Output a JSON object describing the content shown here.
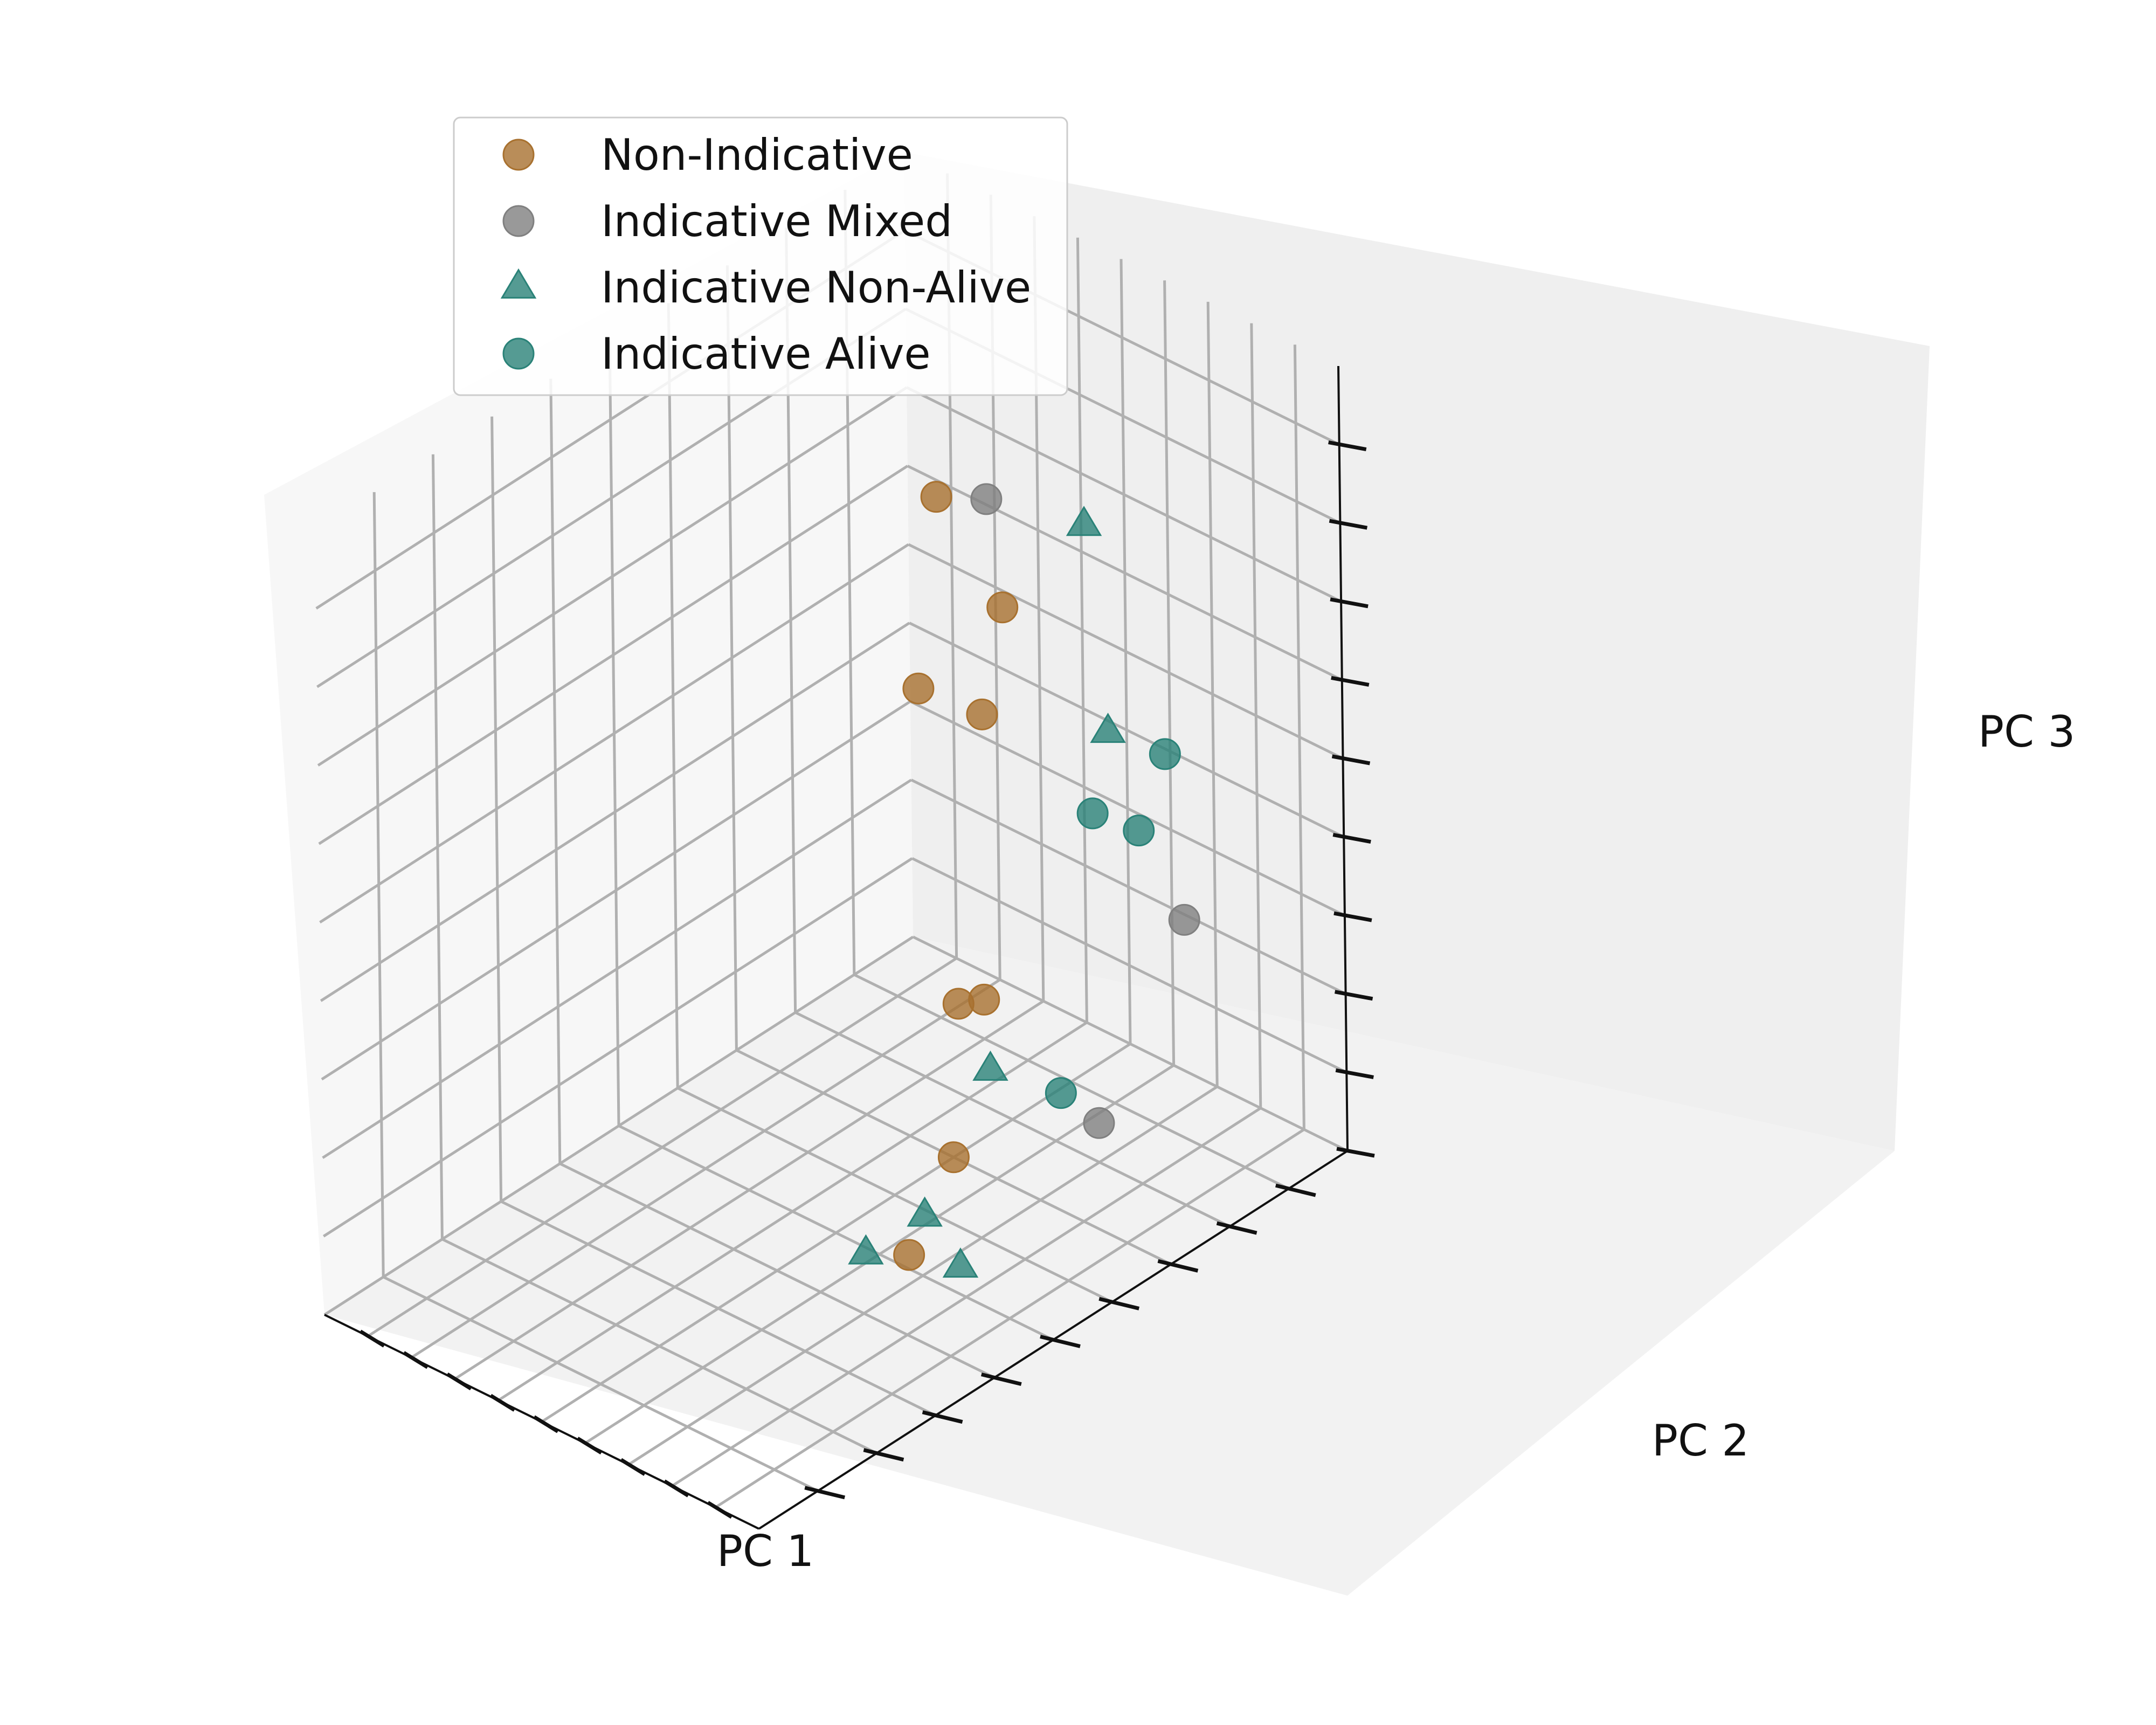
{
  "chart_data": {
    "type": "scatter",
    "projection": "3d",
    "title": "",
    "xlabel": "PC 1",
    "ylabel": "PC 2",
    "zlabel": "PC 3",
    "tick_labels_shown": false,
    "grid": true,
    "legend_position": "upper-left",
    "series": [
      {
        "name": "Non-Indicative",
        "marker": "circle",
        "color": "#a8712f",
        "points": [
          {
            "x": -0.8,
            "y": 0.95,
            "z": 0.2
          },
          {
            "x": -0.5,
            "y": 0.95,
            "z": 0.0
          },
          {
            "x": -0.6,
            "y": 0.95,
            "z": -0.3
          },
          {
            "x": -0.55,
            "y": 0.7,
            "z": -0.1
          },
          {
            "x": -0.45,
            "y": 0.75,
            "z": -0.9
          },
          {
            "x": -0.4,
            "y": 0.8,
            "z": -0.9
          },
          {
            "x": 0.0,
            "y": 0.4,
            "z": -1.0
          },
          {
            "x": 0.2,
            "y": 0.1,
            "z": -1.05
          }
        ]
      },
      {
        "name": "Indicative Mixed",
        "marker": "circle",
        "color": "#808080",
        "points": [
          {
            "x": -0.5,
            "y": 0.9,
            "z": 0.3
          },
          {
            "x": 0.6,
            "y": 0.75,
            "z": -0.4
          },
          {
            "x": 0.4,
            "y": 0.6,
            "z": -0.9
          }
        ]
      },
      {
        "name": "Indicative Non-Alive",
        "marker": "triangle",
        "color": "#2a8278",
        "points": [
          {
            "x": 0.5,
            "y": 0.5,
            "z": 0.7
          },
          {
            "x": 0.6,
            "y": 0.5,
            "z": 0.2
          },
          {
            "x": -0.1,
            "y": 0.6,
            "z": -0.9
          },
          {
            "x": 0.0,
            "y": 0.3,
            "z": -1.1
          },
          {
            "x": 0.0,
            "y": 0.1,
            "z": -1.1
          },
          {
            "x": 0.3,
            "y": 0.2,
            "z": -1.1
          }
        ]
      },
      {
        "name": "Indicative Alive",
        "marker": "circle",
        "color": "#2a8278",
        "points": [
          {
            "x": 0.25,
            "y": 0.7,
            "z": -0.2
          },
          {
            "x": 0.6,
            "y": 0.6,
            "z": -0.1
          },
          {
            "x": 1.0,
            "y": 0.4,
            "z": 0.3
          },
          {
            "x": 0.5,
            "y": 0.4,
            "z": -0.7
          }
        ]
      }
    ]
  }
}
